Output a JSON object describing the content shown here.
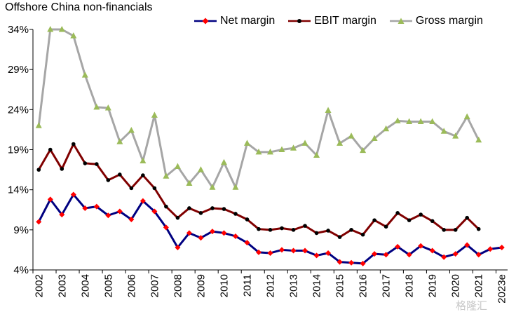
{
  "chart_data": {
    "type": "line",
    "title": "Offshore China non-financials",
    "x": [
      "2002",
      "",
      "2003",
      "",
      "2004",
      "",
      "2005",
      "",
      "2006",
      "",
      "2007",
      "",
      "2008",
      "",
      "2009",
      "",
      "2010",
      "",
      "2011",
      "",
      "2012",
      "",
      "2013",
      "",
      "2014",
      "",
      "2015",
      "",
      "2016",
      "",
      "2017",
      "",
      "2018",
      "",
      "2019",
      "",
      "2020",
      "",
      "2021",
      "",
      "2023e"
    ],
    "x_tick_labels": [
      "2002",
      "2003",
      "2004",
      "2005",
      "2006",
      "2007",
      "2008",
      "2009",
      "2010",
      "2011",
      "2012",
      "2013",
      "2014",
      "2015",
      "2016",
      "2017",
      "2018",
      "2019",
      "2020",
      "2021",
      "2023e"
    ],
    "ylim": [
      4,
      34
    ],
    "y_ticks": [
      4,
      9,
      14,
      19,
      24,
      29,
      34
    ],
    "y_tick_labels": [
      "4%",
      "9%",
      "14%",
      "19%",
      "24%",
      "29%",
      "34%"
    ],
    "grid": false,
    "legend": "top",
    "series": [
      {
        "name": "Net margin",
        "color": "#000080",
        "marker": "diamond",
        "marker_color": "#ff0000",
        "values": [
          10.0,
          12.8,
          10.9,
          13.4,
          11.7,
          11.9,
          10.8,
          11.3,
          10.3,
          12.6,
          11.3,
          9.3,
          6.8,
          8.6,
          8.0,
          8.8,
          8.6,
          8.2,
          7.4,
          6.2,
          6.1,
          6.5,
          6.4,
          6.4,
          5.8,
          6.1,
          5.0,
          4.9,
          4.8,
          6.0,
          5.9,
          6.9,
          5.9,
          7.0,
          6.4,
          5.6,
          6.0,
          7.1,
          5.9,
          6.6,
          6.8
        ]
      },
      {
        "name": "EBIT margin",
        "color": "#800000",
        "marker": "circle",
        "marker_color": "#000000",
        "values": [
          16.5,
          19.0,
          16.6,
          19.7,
          17.3,
          17.2,
          15.2,
          15.9,
          14.2,
          15.8,
          14.2,
          11.9,
          10.5,
          11.7,
          11.1,
          11.7,
          11.6,
          11.0,
          10.3,
          9.1,
          9.0,
          9.2,
          9.0,
          9.5,
          8.6,
          8.9,
          8.1,
          9.0,
          8.4,
          10.2,
          9.4,
          11.1,
          10.2,
          10.9,
          10.1,
          9.0,
          9.0,
          10.5,
          9.1,
          null,
          null
        ]
      },
      {
        "name": "Gross margin",
        "color": "#a6a6a6",
        "marker": "triangle",
        "marker_color": "#9bbb59",
        "values": [
          22.0,
          34.0,
          34.0,
          33.2,
          28.3,
          24.3,
          24.2,
          20.0,
          21.4,
          17.6,
          23.3,
          15.7,
          16.9,
          14.8,
          16.5,
          14.3,
          17.4,
          14.3,
          19.8,
          18.7,
          18.7,
          19.0,
          19.2,
          19.8,
          18.3,
          23.9,
          19.8,
          20.7,
          18.9,
          20.4,
          21.6,
          22.6,
          22.5,
          22.5,
          22.5,
          21.3,
          20.7,
          23.1,
          20.2,
          null,
          null
        ]
      }
    ]
  },
  "watermark": "格隆汇"
}
